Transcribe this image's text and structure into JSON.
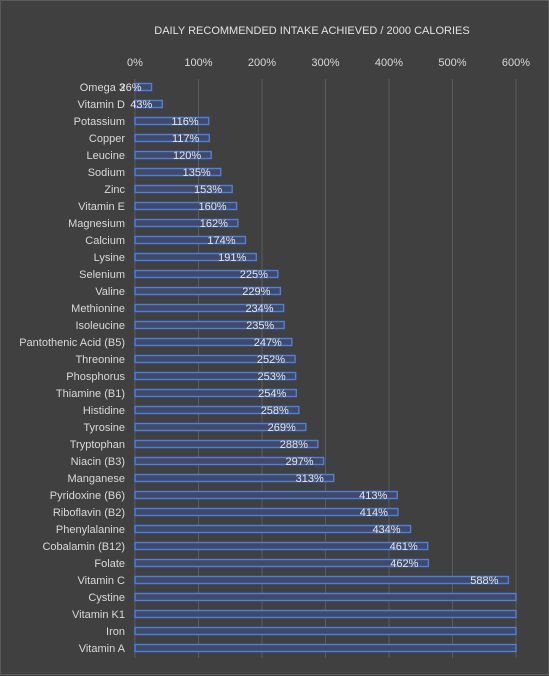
{
  "chart_data": {
    "type": "bar",
    "orientation": "horizontal",
    "title": "DAILY RECOMMENDED INTAKE ACHIEVED / 2000 CALORIES",
    "xlim": [
      0,
      600
    ],
    "x_ticks": [
      "0%",
      "100%",
      "200%",
      "300%",
      "400%",
      "500%",
      "600%"
    ],
    "x_axis_position": "top",
    "grid": true,
    "legend": "none",
    "colors": {
      "background": "#404040",
      "bar_fill": "#404a66",
      "bar_edge": "#4a7fe8",
      "grid": "#5c5c5c",
      "text": "#d9d9d9"
    },
    "categories": [
      "Omega 3",
      "Vitamin D",
      "Potassium",
      "Copper",
      "Leucine",
      "Sodium",
      "Zinc",
      "Vitamin E",
      "Magnesium",
      "Calcium",
      "Lysine",
      "Selenium",
      "Valine",
      "Methionine",
      "Isoleucine",
      "Pantothenic Acid (B5)",
      "Threonine",
      "Phosphorus",
      "Thiamine (B1)",
      "Histidine",
      "Tyrosine",
      "Tryptophan",
      "Niacin (B3)",
      "Manganese",
      "Pyridoxine (B6)",
      "Riboflavin (B2)",
      "Phenylalanine",
      "Cobalamin (B12)",
      "Folate",
      "Vitamin C",
      "Cystine",
      "Vitamin K1",
      "Iron",
      "Vitamin A"
    ],
    "values": [
      26,
      43,
      116,
      117,
      120,
      135,
      153,
      160,
      162,
      174,
      191,
      225,
      229,
      234,
      235,
      247,
      252,
      253,
      254,
      258,
      269,
      288,
      297,
      313,
      413,
      414,
      434,
      461,
      462,
      588,
      600,
      600,
      600,
      600
    ],
    "data_labels": [
      "26%",
      "43%",
      "116%",
      "117%",
      "120%",
      "135%",
      "153%",
      "160%",
      "162%",
      "174%",
      "191%",
      "225%",
      "229%",
      "234%",
      "235%",
      "247%",
      "252%",
      "253%",
      "254%",
      "258%",
      "269%",
      "288%",
      "297%",
      "313%",
      "413%",
      "414%",
      "434%",
      "461%",
      "462%",
      "588%",
      "",
      "",
      "",
      ""
    ]
  }
}
